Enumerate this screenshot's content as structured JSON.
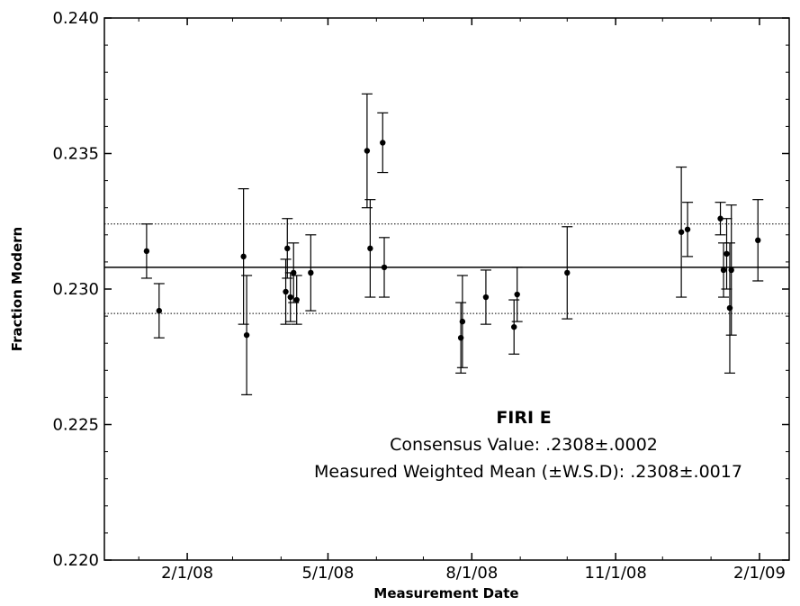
{
  "chart_data": {
    "type": "scatter",
    "title": "",
    "xlabel": "Measurement Date",
    "ylabel": "Fraction Modern",
    "x_is_date": true,
    "xlim": [
      "2007-12-10",
      "2009-02-20"
    ],
    "ylim": [
      0.22,
      0.24
    ],
    "x_ticks": [
      {
        "date": "2008-02-01",
        "label": "2/1/08"
      },
      {
        "date": "2008-05-01",
        "label": "5/1/08"
      },
      {
        "date": "2008-08-01",
        "label": "8/1/08"
      },
      {
        "date": "2008-11-01",
        "label": "11/1/08"
      },
      {
        "date": "2009-02-01",
        "label": "2/1/09"
      }
    ],
    "y_ticks": [
      {
        "value": 0.22,
        "label": "0.220"
      },
      {
        "value": 0.225,
        "label": "0.225"
      },
      {
        "value": 0.23,
        "label": "0.230"
      },
      {
        "value": 0.235,
        "label": "0.235"
      },
      {
        "value": 0.24,
        "label": "0.240"
      }
    ],
    "grid": false,
    "reference_lines": [
      {
        "y": 0.2308,
        "style": "solid"
      },
      {
        "y": 0.2324,
        "style": "dotted"
      },
      {
        "y": 0.2291,
        "style": "dotted"
      }
    ],
    "points": [
      {
        "x": "2008-01-06",
        "y": 0.2314,
        "err": 0.001
      },
      {
        "x": "2008-01-14",
        "y": 0.2292,
        "err": 0.001
      },
      {
        "x": "2008-03-08",
        "y": 0.2312,
        "err": 0.0025
      },
      {
        "x": "2008-03-10",
        "y": 0.2283,
        "err": 0.0022
      },
      {
        "x": "2008-04-04",
        "y": 0.2299,
        "err": 0.0012
      },
      {
        "x": "2008-04-05",
        "y": 0.2315,
        "err": 0.0011
      },
      {
        "x": "2008-04-07",
        "y": 0.2297,
        "err": 0.0009
      },
      {
        "x": "2008-04-09",
        "y": 0.2306,
        "err": 0.0011
      },
      {
        "x": "2008-04-11",
        "y": 0.2296,
        "err": 0.0009
      },
      {
        "x": "2008-04-20",
        "y": 0.2306,
        "err": 0.0014
      },
      {
        "x": "2008-05-26",
        "y": 0.2351,
        "err": 0.0021
      },
      {
        "x": "2008-05-28",
        "y": 0.2315,
        "err": 0.0018
      },
      {
        "x": "2008-06-05",
        "y": 0.2354,
        "err": 0.0011
      },
      {
        "x": "2008-06-06",
        "y": 0.2308,
        "err": 0.0011
      },
      {
        "x": "2008-07-25",
        "y": 0.2282,
        "err": 0.0013
      },
      {
        "x": "2008-07-26",
        "y": 0.2288,
        "err": 0.0017
      },
      {
        "x": "2008-08-10",
        "y": 0.2297,
        "err": 0.001
      },
      {
        "x": "2008-08-28",
        "y": 0.2286,
        "err": 0.001
      },
      {
        "x": "2008-08-30",
        "y": 0.2298,
        "err": 0.001
      },
      {
        "x": "2008-10-01",
        "y": 0.2306,
        "err": 0.0017
      },
      {
        "x": "2008-12-13",
        "y": 0.2321,
        "err": 0.0024
      },
      {
        "x": "2008-12-17",
        "y": 0.2322,
        "err": 0.001
      },
      {
        "x": "2009-01-07",
        "y": 0.2326,
        "err": 0.0006
      },
      {
        "x": "2009-01-09",
        "y": 0.2307,
        "err": 0.001
      },
      {
        "x": "2009-01-11",
        "y": 0.2313,
        "err": 0.0013
      },
      {
        "x": "2009-01-13",
        "y": 0.2293,
        "err": 0.0024
      },
      {
        "x": "2009-01-14",
        "y": 0.2307,
        "err": 0.0024
      },
      {
        "x": "2009-01-31",
        "y": 0.2318,
        "err": 0.0015
      }
    ],
    "annotations": [
      "FIRI E",
      "Consensus Value: .2308±.0002",
      "Measured Weighted Mean (±W.S.D): .2308±.0017"
    ]
  }
}
